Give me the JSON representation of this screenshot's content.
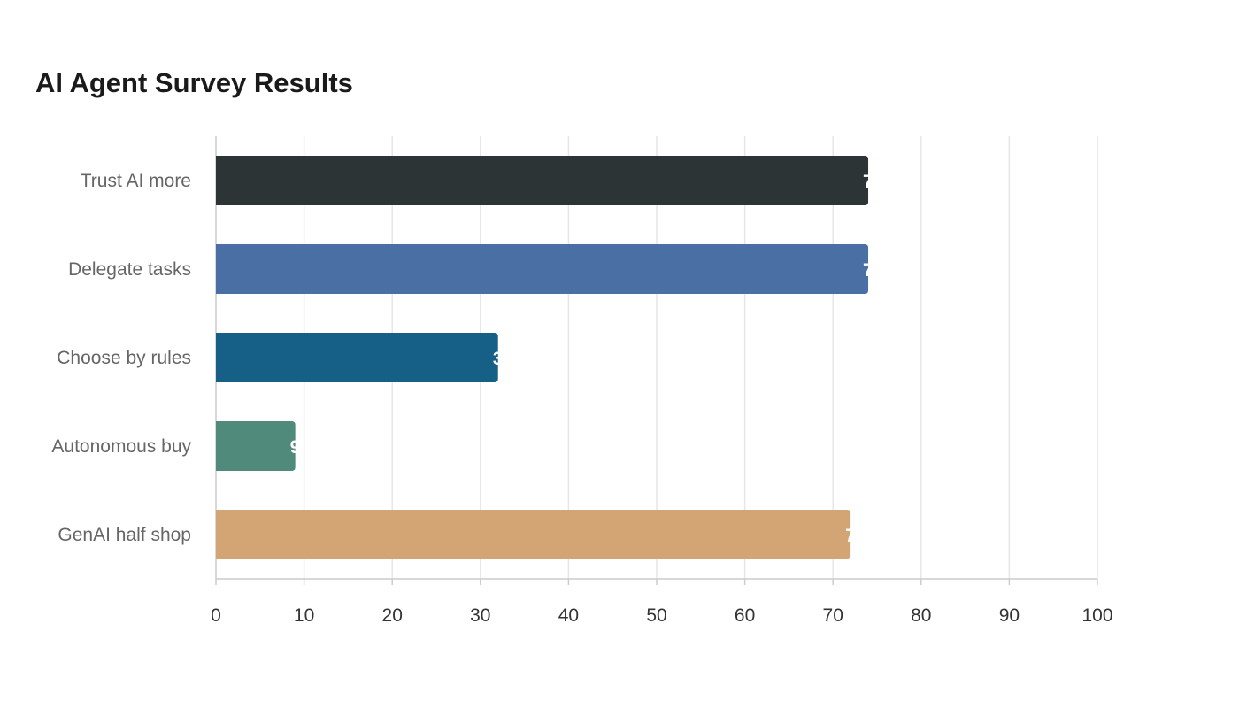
{
  "chart_data": {
    "type": "bar",
    "orientation": "horizontal",
    "title": "AI Agent Survey Results",
    "xlabel": "",
    "ylabel": "",
    "categories": [
      "Trust AI more",
      "Delegate tasks",
      "Choose by rules",
      "Autonomous buy",
      "GenAI half shop"
    ],
    "values": [
      74,
      74,
      32,
      9,
      72
    ],
    "colors": [
      "#2d3436",
      "#4a6fa5",
      "#166088",
      "#4f8a7a",
      "#d4a574"
    ],
    "xlim": [
      0,
      100
    ],
    "xticks": [
      0,
      10,
      20,
      30,
      40,
      50,
      60,
      70,
      80,
      90,
      100
    ],
    "grid": true,
    "legend": "none"
  }
}
